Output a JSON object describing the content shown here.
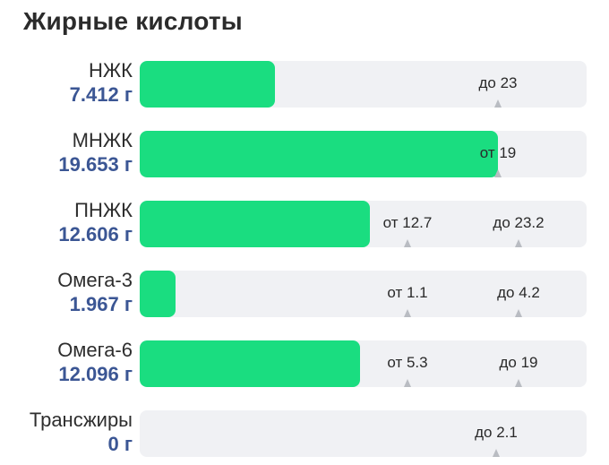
{
  "title": "Жирные кислоты",
  "bar_scale_max": 24.5,
  "rows": [
    {
      "name": "НЖК",
      "value_text": "7.412 г",
      "value": 7.412,
      "markers": [
        {
          "label": "до 23",
          "value": 23
        }
      ]
    },
    {
      "name": "МНЖК",
      "value_text": "19.653 г",
      "value": 19.653,
      "markers": [
        {
          "label": "от 19",
          "value": 19
        }
      ]
    },
    {
      "name": "ПНЖК",
      "value_text": "12.606 г",
      "value": 12.606,
      "markers": [
        {
          "label": "от 12.7",
          "value": 12.7
        },
        {
          "label": "до 23.2",
          "value": 23.2
        }
      ]
    },
    {
      "name": "Омега-3",
      "value_text": "1.967 г",
      "value": 1.967,
      "markers": [
        {
          "label": "от 1.1",
          "value": 1.1
        },
        {
          "label": "до 4.2",
          "value": 4.2
        }
      ]
    },
    {
      "name": "Омега-6",
      "value_text": "12.096 г",
      "value": 12.096,
      "markers": [
        {
          "label": "от 5.3",
          "value": 5.3
        },
        {
          "label": "до 19",
          "value": 19
        }
      ]
    },
    {
      "name": "Трансжиры",
      "value_text": "0 г",
      "value": 0,
      "markers": [
        {
          "label": "до 2.1",
          "value": 2.1
        }
      ]
    }
  ]
}
